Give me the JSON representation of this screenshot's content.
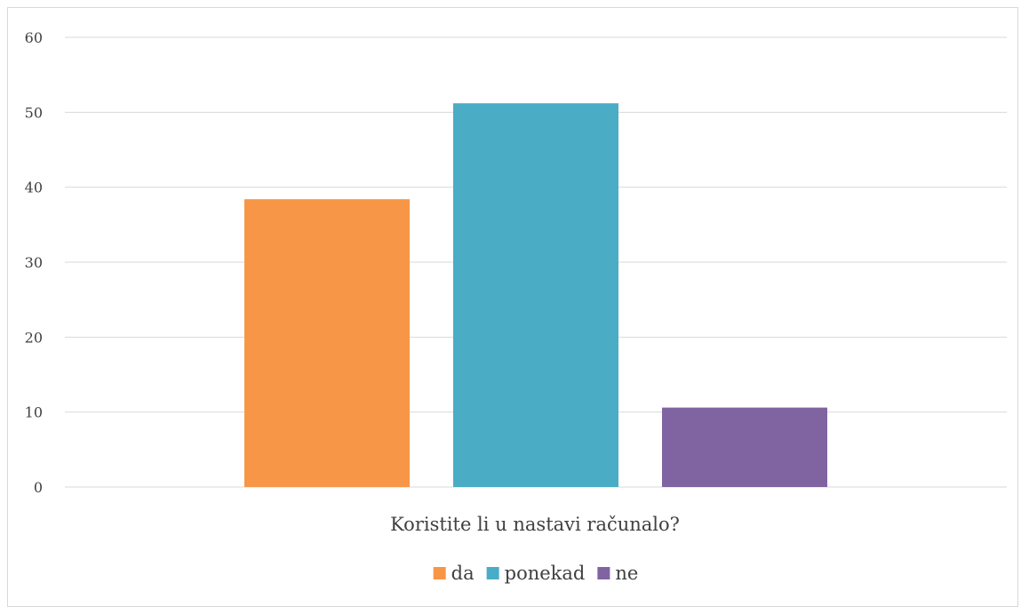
{
  "chart_data": {
    "type": "bar",
    "title": "",
    "xlabel": "",
    "ylabel": "",
    "categories": [
      "Koristite li u nastavi računalo?"
    ],
    "series": [
      {
        "name": "da",
        "values": [
          38.4
        ],
        "color": "#f79646"
      },
      {
        "name": "ponekad",
        "values": [
          51.2
        ],
        "color": "#4bacc6"
      },
      {
        "name": "ne",
        "values": [
          10.6
        ],
        "color": "#8064a2"
      }
    ],
    "ylim": [
      0,
      60
    ],
    "yticks": [
      "0",
      "10",
      "20",
      "30",
      "40",
      "50",
      "60"
    ],
    "ytick_values": [
      0,
      10,
      20,
      30,
      40,
      50,
      60
    ],
    "grid": true,
    "gridline_color": "#d9d9d9",
    "legend_position": "bottom"
  }
}
